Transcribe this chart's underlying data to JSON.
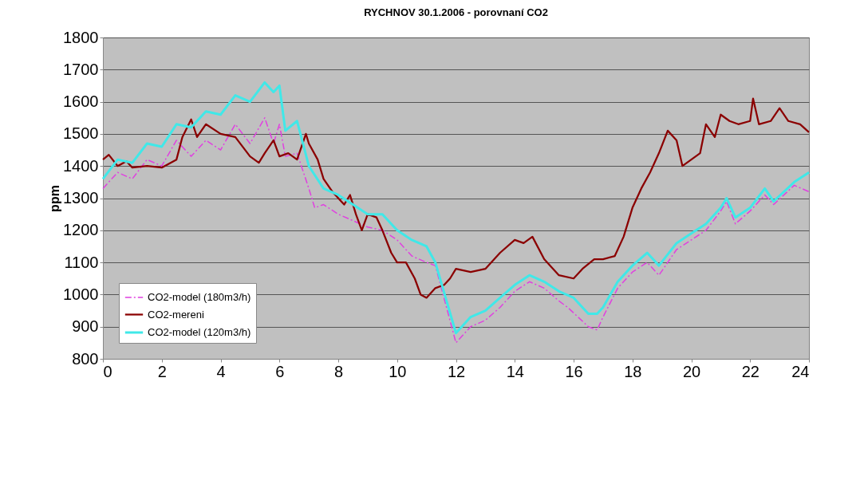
{
  "chart_data": {
    "type": "line",
    "title": "RYCHNOV 30.1.2006 - porovnaní CO2",
    "ylabel": "ppm",
    "xlim": [
      0,
      24
    ],
    "xticks": [
      0,
      2,
      4,
      6,
      8,
      10,
      12,
      14,
      16,
      18,
      20,
      22,
      24
    ],
    "ylim": [
      800,
      1800
    ],
    "yticks": [
      800,
      900,
      1000,
      1100,
      1200,
      1300,
      1400,
      1500,
      1600,
      1700,
      1800
    ],
    "grid": "y",
    "legend": "bottom left",
    "marker": "none",
    "series": [
      {
        "name": "CO2-model (180m3/h)",
        "color": "#e040e0",
        "line_style": "dashed",
        "x": [
          0,
          0.5,
          1,
          1.5,
          2,
          2.5,
          3,
          3.5,
          4,
          4.5,
          5,
          5.5,
          5.8,
          6,
          6.2,
          6.6,
          7,
          7.2,
          7.5,
          8,
          8.5,
          9,
          9.5,
          10,
          10.5,
          11,
          11.3,
          12,
          12.5,
          13,
          13.5,
          14,
          14.5,
          15,
          15.5,
          15.8,
          16.5,
          16.8,
          17,
          17.5,
          18,
          18.5,
          18.9,
          19.5,
          20,
          20.5,
          21,
          21.2,
          21.5,
          22,
          22.5,
          22.8,
          23.5,
          24
        ],
        "values": [
          1330,
          1380,
          1360,
          1420,
          1400,
          1480,
          1430,
          1480,
          1450,
          1530,
          1470,
          1550,
          1470,
          1530,
          1430,
          1440,
          1330,
          1270,
          1280,
          1250,
          1230,
          1210,
          1200,
          1170,
          1120,
          1100,
          1090,
          850,
          900,
          920,
          960,
          1010,
          1040,
          1020,
          980,
          960,
          900,
          890,
          930,
          1020,
          1070,
          1100,
          1060,
          1140,
          1170,
          1200,
          1260,
          1290,
          1220,
          1260,
          1310,
          1280,
          1340,
          1320
        ]
      },
      {
        "name": "CO2-mereni",
        "color": "#8b0000",
        "line_style": "solid",
        "x": [
          0,
          0.2,
          0.5,
          0.8,
          1,
          1.5,
          2,
          2.5,
          2.7,
          3,
          3.2,
          3.5,
          4,
          4.5,
          5,
          5.3,
          5.5,
          5.8,
          6,
          6.3,
          6.6,
          6.9,
          7,
          7.3,
          7.5,
          7.8,
          8,
          8.2,
          8.4,
          8.6,
          8.8,
          9,
          9.3,
          9.5,
          9.8,
          10,
          10.3,
          10.6,
          10.8,
          11,
          11.3,
          11.6,
          11.8,
          12,
          12.5,
          13,
          13.5,
          14,
          14.3,
          14.6,
          15,
          15.5,
          16,
          16.3,
          16.7,
          17,
          17.4,
          17.7,
          18,
          18.3,
          18.6,
          18.9,
          19.2,
          19.5,
          19.7,
          20,
          20.3,
          20.5,
          20.8,
          21,
          21.3,
          21.6,
          22,
          22.1,
          22.3,
          22.7,
          23,
          23.3,
          23.7,
          24
        ],
        "values": [
          1420,
          1435,
          1400,
          1415,
          1395,
          1400,
          1395,
          1420,
          1490,
          1545,
          1490,
          1530,
          1500,
          1490,
          1430,
          1410,
          1440,
          1480,
          1430,
          1440,
          1420,
          1500,
          1470,
          1420,
          1360,
          1320,
          1300,
          1280,
          1310,
          1250,
          1200,
          1250,
          1240,
          1200,
          1130,
          1100,
          1100,
          1050,
          1000,
          990,
          1020,
          1030,
          1050,
          1080,
          1070,
          1080,
          1130,
          1170,
          1160,
          1180,
          1110,
          1060,
          1050,
          1080,
          1110,
          1110,
          1120,
          1180,
          1270,
          1330,
          1380,
          1440,
          1510,
          1480,
          1400,
          1420,
          1440,
          1530,
          1490,
          1560,
          1540,
          1530,
          1540,
          1610,
          1530,
          1540,
          1580,
          1540,
          1530,
          1505
        ]
      },
      {
        "name": "CO2-model (120m3/h)",
        "color": "#40e8e8",
        "line_style": "solid",
        "x": [
          0,
          0.5,
          1,
          1.5,
          2,
          2.5,
          3,
          3.5,
          4,
          4.5,
          5,
          5.5,
          5.8,
          6,
          6.2,
          6.6,
          7,
          7.5,
          8,
          8.5,
          9,
          9.5,
          10,
          10.5,
          11,
          11.3,
          12,
          12.5,
          13,
          13.5,
          14,
          14.5,
          15,
          15.5,
          16,
          16.5,
          16.8,
          17,
          17.5,
          18,
          18.5,
          18.9,
          19.5,
          20,
          20.5,
          21,
          21.2,
          21.5,
          22,
          22.5,
          22.8,
          23.5,
          24
        ],
        "values": [
          1360,
          1420,
          1410,
          1470,
          1460,
          1530,
          1520,
          1570,
          1560,
          1620,
          1600,
          1660,
          1630,
          1650,
          1510,
          1540,
          1400,
          1330,
          1310,
          1280,
          1250,
          1250,
          1200,
          1170,
          1150,
          1100,
          880,
          930,
          950,
          990,
          1030,
          1060,
          1040,
          1010,
          990,
          940,
          940,
          960,
          1040,
          1090,
          1130,
          1090,
          1160,
          1190,
          1220,
          1270,
          1300,
          1240,
          1270,
          1330,
          1290,
          1350,
          1380
        ]
      }
    ]
  }
}
